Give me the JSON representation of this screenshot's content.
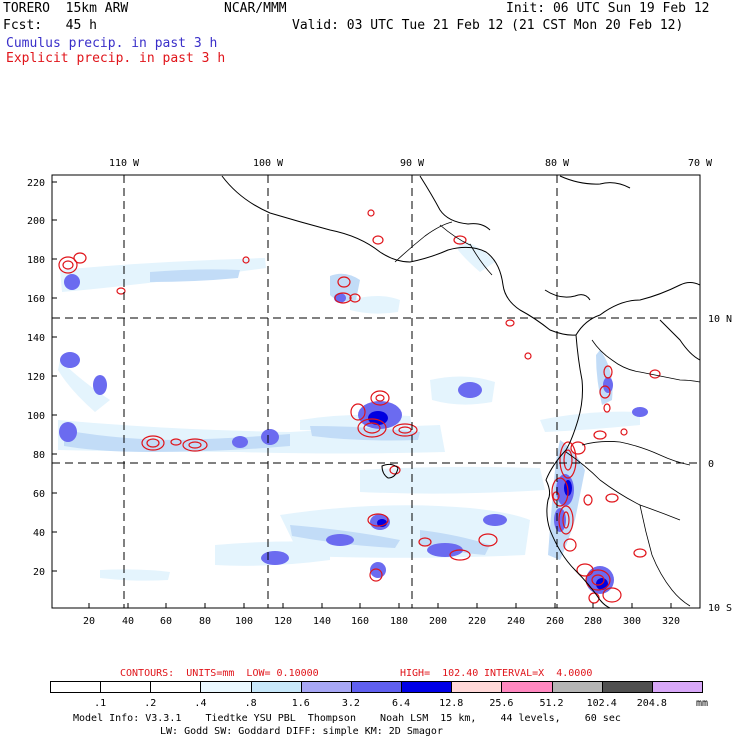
{
  "header": {
    "model": "TORERO  15km ARW",
    "fcst": "Fcst:   45 h",
    "org": "NCAR/MMM",
    "init": "Init: 06 UTC Sun 19 Feb 12",
    "valid": "Valid: 03 UTC Tue 21 Feb 12 (21 CST Mon 20 Feb 12)",
    "field1": "Cumulus precip. in past 3 h",
    "field2": "Explicit precip. in past 3 h"
  },
  "map": {
    "top_lon_labels": [
      "110 W",
      "100 W",
      "90 W",
      "80 W",
      "70 W"
    ],
    "right_lat_labels": [
      "10 N",
      "0",
      "10 S"
    ],
    "left_axis_labels": [
      "220",
      "200",
      "180",
      "160",
      "140",
      "120",
      "100",
      "80",
      "60",
      "40",
      "20"
    ],
    "bottom_axis_labels": [
      "20",
      "40",
      "60",
      "80",
      "100",
      "120",
      "140",
      "160",
      "180",
      "200",
      "220",
      "240",
      "260",
      "280",
      "300",
      "320"
    ]
  },
  "contour_info": {
    "contours_label": "CONTOURS:  UNITS=mm  LOW= 0.10000",
    "high_label": "HIGH=  102.40",
    "interval_label": "INTERVAL=X  4.0000"
  },
  "colorbar": {
    "labels": [
      ".1",
      ".2",
      ".4",
      ".8",
      "1.6",
      "3.2",
      "6.4",
      "12.8",
      "25.6",
      "51.2",
      "102.4",
      "204.8"
    ],
    "unit": "mm",
    "colors": [
      "#ffffff",
      "#ffffff",
      "#ffffff",
      "#eaf8ff",
      "#c8e8fa",
      "#a7a7f5",
      "#6060f0",
      "#0000e6",
      "#ffd8d8",
      "#ff88c0",
      "#b5b5b5",
      "#505050",
      "#d8a8f8"
    ]
  },
  "footer": {
    "line1": "Model Info: V3.3.1    Tiedtke YSU PBL  Thompson    Noah LSM  15 km,    44 levels,    60 sec",
    "line2": "LW: Godd SW: Goddard DIFF: simple KM: 2D Smagor"
  }
}
